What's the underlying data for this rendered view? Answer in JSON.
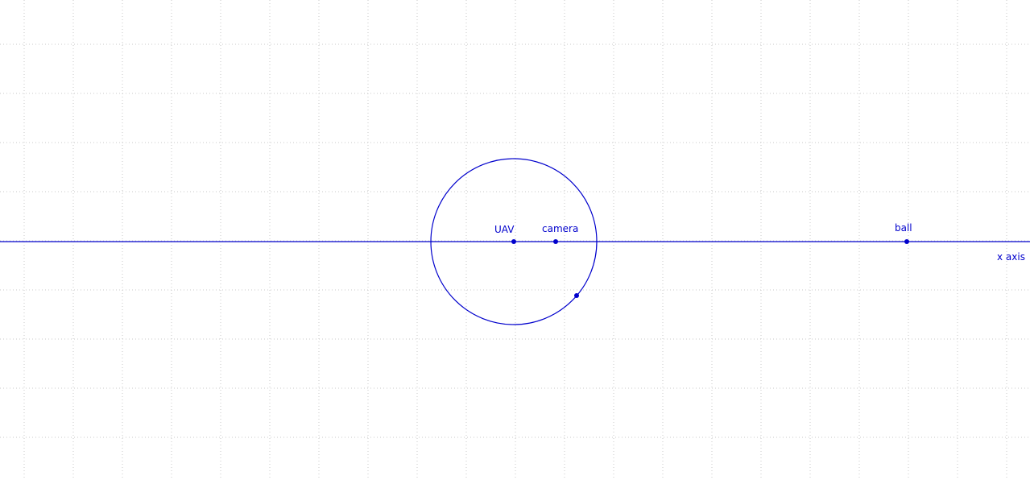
{
  "colors": {
    "accent": "#0000cc",
    "grid": "#c8c8c8",
    "background": "#ffffff"
  },
  "labels": {
    "x_axis": "x axis",
    "uav": "UAV",
    "camera": "camera",
    "ball": "ball"
  }
}
